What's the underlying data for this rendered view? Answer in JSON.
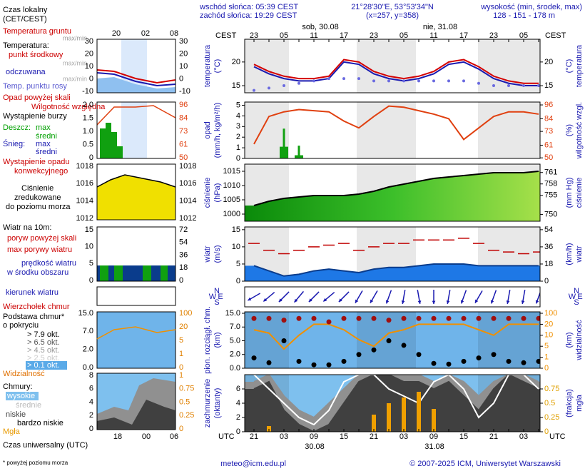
{
  "header": {
    "sunrise": "wschód słońca: 05:39 CEST",
    "sunset": "zachód słońca: 19:29 CEST",
    "coords": "21°28'30\"E, 53°53'34\"N",
    "grid": "(x=257, y=358)",
    "elev_title": "wysokość (min, środek, max)",
    "elev": "128 - 151 - 178 m"
  },
  "time": {
    "cest_label": "CEST",
    "utc_label": "UTC",
    "cest": [
      "23",
      null,
      "05",
      null,
      "11",
      null,
      "17",
      null,
      "23",
      null,
      "05",
      null,
      "11",
      null,
      "17",
      null,
      "23",
      null,
      "05",
      null
    ],
    "categories": [
      "21",
      null,
      "03",
      null,
      "09",
      null,
      "15",
      null,
      "21",
      null,
      "03",
      null,
      "09",
      null,
      "15",
      null,
      "21",
      null,
      "03",
      null
    ],
    "days_top": [
      "sob, 30.08",
      "nie, 31.08"
    ],
    "days_bottom": [
      "30.08",
      "31.08"
    ]
  },
  "legend": {
    "items": [
      {
        "text": "Czas lokalny",
        "color": "#000000"
      },
      {
        "text": "(CET/CEST)",
        "color": "#000000"
      },
      {
        "text": "Temperatura gruntu",
        "color": "#cc0000"
      },
      {
        "text": "max/min",
        "color": "#999999"
      },
      {
        "text": "Temperatura:",
        "color": "#000000"
      },
      {
        "text": "punkt środkowy",
        "color": "#cc0000"
      },
      {
        "text": "max/min",
        "color": "#aaaaaa"
      },
      {
        "text": "odczuwana",
        "color": "#1a1ab0"
      },
      {
        "text": "max/min",
        "color": "#aaaaaa"
      },
      {
        "text": "Temp. punktu rosy",
        "color": "#5a5ad0"
      },
      {
        "text": "Opad powyżej skali",
        "color": "#cc0000"
      },
      {
        "text": "Wilgotność względna",
        "color": "#cc0000"
      },
      {
        "text": "Wystąpienie burzy",
        "color": "#000000"
      },
      {
        "text": "Deszcz:",
        "color": "#00a000"
      },
      {
        "text": "max",
        "color": "#00a000"
      },
      {
        "text": "średni",
        "color": "#00a000"
      },
      {
        "text": "Śnieg:",
        "color": "#1a1ab0"
      },
      {
        "text": "max",
        "color": "#1a1ab0"
      },
      {
        "text": "średni",
        "color": "#1a1ab0"
      },
      {
        "text": "Wystąpienie opadu",
        "color": "#cc0000"
      },
      {
        "text": "konwekcyjnego",
        "color": "#cc0000"
      },
      {
        "text": "Ciśnienie",
        "color": "#000000"
      },
      {
        "text": "zredukowane",
        "color": "#000000"
      },
      {
        "text": "do poziomu morza",
        "color": "#000000"
      },
      {
        "text": "Wiatr na 10m:",
        "color": "#000000"
      },
      {
        "text": "poryw powyżej skali",
        "color": "#cc0000"
      },
      {
        "text": "max porywy wiatru",
        "color": "#cc0000"
      },
      {
        "text": "prędkość wiatru",
        "color": "#1a1ab0"
      },
      {
        "text": "w środku obszaru",
        "color": "#1a1ab0"
      },
      {
        "text": "kierunek wiatru",
        "color": "#1a1ab0"
      },
      {
        "text": "Wierzchołek chmur",
        "color": "#cc0000"
      },
      {
        "text": "Podstawa chmur*",
        "color": "#000000"
      },
      {
        "text": "o pokryciu",
        "color": "#000000"
      },
      {
        "text": "> 7.9 okt.",
        "color": "#000000"
      },
      {
        "text": "> 6.5 okt.",
        "color": "#555555"
      },
      {
        "text": "> 4.5 okt.",
        "color": "#999999"
      },
      {
        "text": "> 2.5 okt.",
        "color": "#cccccc"
      },
      {
        "text": "> 0.1 okt.",
        "color": "#ffffff"
      },
      {
        "text": "Widzialność",
        "color": "#e07000"
      },
      {
        "text": "Chmury:",
        "color": "#000000"
      },
      {
        "text": "wysokie",
        "color": "#ffffff"
      },
      {
        "text": "średnie",
        "color": "#bbbbbb"
      },
      {
        "text": "niskie",
        "color": "#444444"
      },
      {
        "text": "bardzo niskie",
        "color": "#000000"
      },
      {
        "text": "Mgła",
        "color": "#e89a00"
      },
      {
        "text": "Czas uniwersalny (UTC)",
        "color": "#000000"
      },
      {
        "text": "* powyżej poziomu morza",
        "color": "#000000"
      }
    ]
  },
  "mini": {
    "top": [
      "20",
      "02",
      "08"
    ],
    "bottom": [
      "18",
      "00",
      "06"
    ],
    "panels": [
      {
        "left": [
          30,
          20,
          10,
          0,
          -10
        ],
        "right": [
          30,
          20,
          10,
          0,
          -10
        ]
      },
      {
        "left": [
          {
            "value": 2,
            "label": "2.0"
          },
          1.5,
          {
            "value": 1,
            "label": "1.0"
          },
          0.5,
          0
        ],
        "right": [
          96,
          84,
          73,
          61,
          50
        ]
      },
      {
        "left": [
          1018,
          1016,
          1014,
          1012
        ],
        "right": [
          1018,
          1016,
          1014,
          1012
        ]
      },
      {
        "left": [
          15,
          10,
          5,
          0
        ],
        "right": [
          72,
          54,
          36,
          18,
          0
        ]
      },
      {
        "left": [
          {
            "value": 15,
            "label": "15.0"
          },
          {
            "value": 7,
            "label": "7.0"
          },
          {
            "value": 2,
            "label": "2.0"
          },
          {
            "value": 0,
            "label": "0.0"
          }
        ],
        "right": [
          100,
          20,
          5,
          1,
          0
        ]
      },
      {
        "left": [
          8,
          6,
          4,
          2,
          0
        ],
        "right": [
          1,
          0.75,
          0.5,
          0.25,
          0
        ]
      }
    ]
  },
  "panels": [
    {
      "type": "line",
      "label_left": [
        "temperatura",
        "(°C)"
      ],
      "label_right": [
        "(°C)",
        "temperatura"
      ],
      "ylim": [
        13.5,
        24.8
      ],
      "yticks": [
        15,
        20
      ],
      "y2lim": [
        13.5,
        24.8
      ],
      "y2ticks": [
        15,
        20
      ],
      "y2color": "#000000",
      "background": "#ffffff",
      "series": [
        {
          "kind": "line",
          "color": "#1a1ab0",
          "values": [
            19,
            17.5,
            16.5,
            16,
            16,
            16.5,
            20,
            19.5,
            17.5,
            16.5,
            16,
            16.5,
            17.5,
            19.5,
            20,
            18.5,
            16.5,
            15.5,
            15,
            15
          ]
        },
        {
          "kind": "line",
          "color": "#d40000",
          "values": [
            19.5,
            18,
            17,
            16.5,
            16.5,
            17,
            20.5,
            20,
            18,
            17,
            16.5,
            17,
            18,
            20,
            20.5,
            19,
            17,
            16,
            15.5,
            15.5
          ]
        },
        {
          "kind": "dots",
          "color": "#6a6ae0",
          "values": [
            14,
            14.5,
            15,
            15.5,
            16,
            16.5,
            16.5,
            16.5,
            16,
            16,
            16,
            16,
            16,
            16,
            16,
            15.5,
            15,
            15,
            15,
            15
          ]
        }
      ]
    },
    {
      "type": "bar",
      "label_left": [
        "opad",
        "(mm/h, kg/m²/h)"
      ],
      "label_right": [
        "(%)",
        "wilgotność wzgl."
      ],
      "ylim": [
        0,
        5.3
      ],
      "yticks": [
        0,
        1,
        2,
        3,
        4,
        5
      ],
      "y2lim": [
        49.5,
        98.5
      ],
      "y2ticks": [
        50,
        61,
        73,
        84,
        96
      ],
      "y2color": "#e04010",
      "background": "#ffffff",
      "series": [
        {
          "kind": "bars",
          "width": 3,
          "color": "#10a010",
          "values": [
            0,
            0,
            2.8,
            1.2,
            0,
            0,
            0,
            0,
            0,
            0,
            0,
            0,
            0,
            0,
            0,
            0,
            0,
            0,
            0,
            0
          ]
        },
        {
          "kind": "bars",
          "width": 12,
          "color": "#10a010",
          "values": [
            0,
            0,
            1.1,
            0.3,
            0,
            0,
            0,
            0,
            0,
            0,
            0,
            0,
            0,
            0,
            0,
            0,
            0,
            0,
            0,
            0
          ]
        },
        {
          "kind": "line",
          "axis": "y2",
          "color": "#e04010",
          "values": [
            62,
            86,
            90,
            92,
            91,
            90,
            82,
            76,
            86,
            95,
            94,
            91,
            88,
            84,
            66,
            76,
            86,
            90,
            90,
            88
          ]
        }
      ]
    },
    {
      "type": "area",
      "label_left": [
        "ciśnienie",
        "(hPa)"
      ],
      "label_right": [
        "(mm Hg)",
        "ciśnienie"
      ],
      "ylim": [
        997.5,
        1017.5
      ],
      "yticks": [
        1000,
        1005,
        1010,
        1015
      ],
      "y2lim": [
        748.2,
        763.2
      ],
      "y2ticks": [
        750,
        755,
        758,
        761
      ],
      "y2color": "#000000",
      "background": "#ffffff",
      "series": [
        {
          "kind": "area",
          "color": "#000000",
          "fill": "url(#pgrad)",
          "values": [
            1003,
            1004.5,
            1005.5,
            1006,
            1006.5,
            1006.5,
            1006.5,
            1007,
            1008,
            1009.5,
            1010.5,
            1011.5,
            1012.5,
            1013,
            1013.5,
            1014,
            1014.5,
            1014.5,
            1014.5,
            1015
          ]
        }
      ]
    },
    {
      "type": "area",
      "label_left": [
        "wiatr",
        "(m/s)"
      ],
      "label_right": [
        "(km/h)",
        "wiatr"
      ],
      "ylim": [
        0,
        15.8
      ],
      "yticks": [
        0,
        5,
        10,
        15
      ],
      "y2lim": [
        0,
        56.9
      ],
      "y2ticks": [
        0,
        18,
        36,
        54
      ],
      "y2color": "#000000",
      "background": "#ffffff",
      "series": [
        {
          "kind": "area",
          "color": "#0a3c8c",
          "fill": "#1e78e6",
          "values": [
            4.5,
            3,
            1.5,
            2,
            3,
            3.5,
            3,
            2.5,
            3.5,
            4,
            4,
            4.5,
            5,
            5,
            5,
            4.5,
            4.5,
            4.5,
            4.5,
            4.5
          ]
        },
        {
          "kind": "dashes",
          "color": "#c00000",
          "values": [
            11,
            9,
            8,
            9,
            10,
            10.5,
            11,
            9,
            10,
            11,
            11,
            12,
            12,
            12,
            12.5,
            11,
            9,
            8.5,
            8,
            8.5
          ]
        }
      ]
    },
    {
      "type": "arrows",
      "compass": [
        "N",
        "W",
        "E",
        "S"
      ],
      "background": "#ffffff",
      "series": [
        {
          "kind": "arrows",
          "color": "#1a1ab0",
          "values": [
            60,
            50,
            45,
            40,
            45,
            50,
            45,
            30,
            30,
            20,
            10,
            350,
            0,
            10,
            20,
            30,
            20,
            10,
            10,
            20
          ]
        }
      ]
    },
    {
      "type": "scatter",
      "label_left": [
        "pion. rozciągł. chm.",
        "(km)"
      ],
      "label_right": [
        "(km)",
        "widzialność"
      ],
      "scale": "piecewise",
      "ylim": [
        0,
        15
      ],
      "yticks": [
        {
          "value": 0,
          "label": "0.0"
        },
        {
          "value": 2,
          "label": "2.0"
        },
        {
          "value": 5,
          "label": "5.0"
        },
        {
          "value": 7,
          "label": "7.0"
        },
        {
          "value": 15,
          "label": "15.0"
        }
      ],
      "y2lim": [
        0,
        100
      ],
      "y2ticks": [
        0,
        1,
        5,
        10,
        20,
        100
      ],
      "y2color": "#f09000",
      "background": "#6fb4ea",
      "series": [
        {
          "kind": "line",
          "axis": "y2",
          "color": "#f09000",
          "values": [
            15,
            12,
            4,
            10,
            20,
            20,
            15,
            8,
            5,
            12,
            15,
            20,
            20,
            20,
            20,
            15,
            10,
            20,
            20,
            20
          ]
        },
        {
          "kind": "dots",
          "color": "#a01010",
          "r": 3.5,
          "values": [
            12,
            12,
            11,
            12,
            12,
            10,
            12,
            12,
            12,
            11,
            12,
            12,
            12,
            12,
            12,
            12,
            12,
            12,
            12,
            12
          ]
        },
        {
          "kind": "dots",
          "color": "#000000",
          "r": 3.5,
          "values": [
            1.5,
            0.8,
            5,
            1,
            0.5,
            0.5,
            1,
            2,
            3,
            5,
            4,
            2,
            0.7,
            0.6,
            1,
            1.5,
            2,
            1,
            0.8,
            1
          ]
        }
      ]
    },
    {
      "type": "area",
      "label_left": [
        "zachmurzenie",
        "(oktanty)"
      ],
      "label_right": [
        "(frakcja)",
        "mgła"
      ],
      "ylim": [
        0,
        8
      ],
      "yticks": [
        0,
        2,
        4,
        6
      ],
      "y2lim": [
        0,
        1
      ],
      "y2ticks": [
        0,
        0.25,
        0.5,
        0.75
      ],
      "y2color": "#e0a000",
      "background": "#7ec0ee",
      "series": [
        {
          "kind": "area",
          "color": "#909090",
          "fill": "#909090",
          "values": [
            7,
            8,
            5,
            3,
            2,
            4,
            6,
            8,
            8,
            8,
            8,
            8,
            7,
            8,
            7,
            5,
            7,
            8,
            8,
            7
          ]
        },
        {
          "kind": "area",
          "color": "#404040",
          "fill": "#404040",
          "values": [
            6,
            7,
            3,
            1,
            0,
            1,
            4,
            7,
            8,
            8,
            7,
            7,
            6,
            7,
            5,
            3,
            6,
            8,
            7,
            6
          ]
        },
        {
          "kind": "line",
          "color": "#ffffff",
          "values": [
            8,
            6,
            4,
            2,
            1,
            3,
            7,
            8,
            8,
            6,
            5,
            4,
            7,
            8,
            6,
            2,
            4,
            8,
            8,
            6
          ]
        },
        {
          "kind": "bars",
          "axis": "y2",
          "width": 6,
          "color": "#f0a000",
          "values": [
            0,
            0.1,
            0,
            0,
            0,
            0,
            0,
            0,
            0.3,
            0.5,
            0.6,
            0.7,
            0.4,
            0,
            0,
            0,
            0,
            0,
            0,
            0
          ]
        }
      ]
    }
  ],
  "footer": {
    "email": "meteo@icm.edu.pl",
    "copyright": "© 2007-2025 ICM, Uniwersytet Warszawski"
  }
}
